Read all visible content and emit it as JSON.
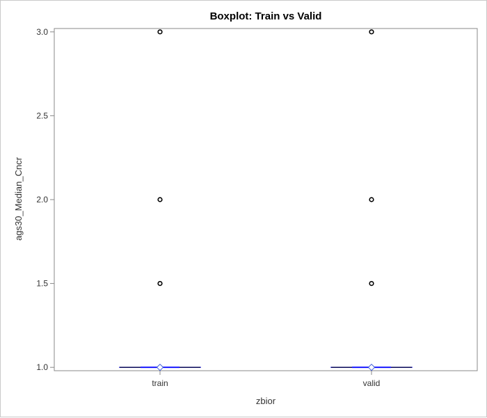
{
  "chart_data": {
    "type": "boxplot",
    "title": "Boxplot: Train vs Valid",
    "xlabel": "zbior",
    "ylabel": "ags30_Median_Cncr",
    "categories": [
      "train",
      "valid"
    ],
    "ylim": [
      0.98,
      3.02
    ],
    "yticks": [
      1.0,
      1.5,
      2.0,
      2.5,
      3.0
    ],
    "ytick_labels": [
      "1.0",
      "1.5",
      "2.0",
      "2.5",
      "3.0"
    ],
    "groups": [
      {
        "category": "train",
        "min": 1.0,
        "q1": 1.0,
        "median": 1.0,
        "q3": 1.0,
        "max": 1.0,
        "mean": 1.0,
        "outliers": [
          1.5,
          2.0,
          3.0
        ]
      },
      {
        "category": "valid",
        "min": 1.0,
        "q1": 1.0,
        "median": 1.0,
        "q3": 1.0,
        "max": 1.0,
        "mean": 1.0,
        "outliers": [
          1.5,
          2.0,
          3.0
        ]
      }
    ],
    "colors": {
      "box": "#1a1aff",
      "median": "#000000",
      "whisker": "#333333",
      "outlier": "#000000",
      "mean": "#3b5bdb",
      "axis": "#888888"
    },
    "grid": false,
    "legend": "none"
  }
}
